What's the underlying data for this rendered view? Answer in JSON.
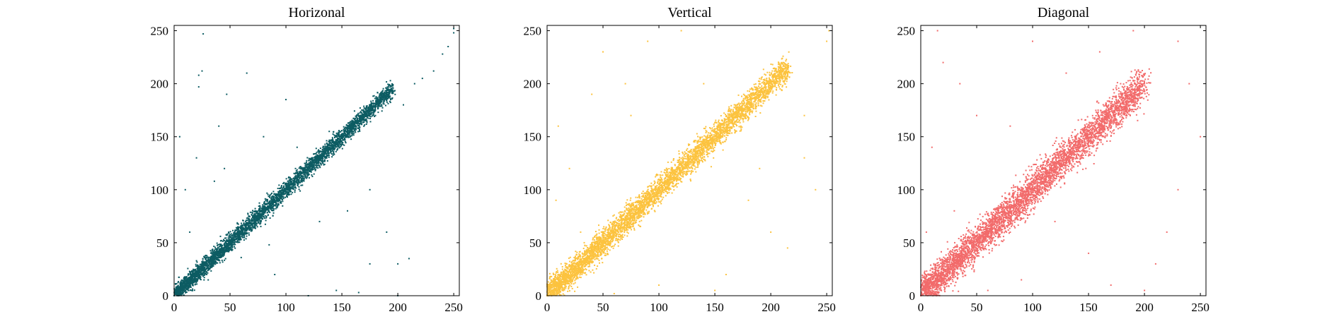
{
  "chart_data": [
    {
      "type": "scatter",
      "title": "Horizonal",
      "color": "#0d5c63",
      "xlim": [
        0,
        255
      ],
      "ylim": [
        0,
        255
      ],
      "xticks": [
        0,
        50,
        100,
        150,
        200,
        250
      ],
      "yticks": [
        0,
        50,
        100,
        150,
        200,
        250
      ],
      "grid": false,
      "trend": {
        "x_start": 0,
        "x_end": 195,
        "slope": 1.0,
        "spread": 4,
        "n_points": 4200
      },
      "sample_points": [
        [
          0,
          0
        ],
        [
          3,
          2
        ],
        [
          5,
          4
        ],
        [
          8,
          6
        ],
        [
          10,
          9
        ],
        [
          12,
          14
        ],
        [
          15,
          13
        ],
        [
          20,
          18
        ],
        [
          25,
          24
        ],
        [
          30,
          29
        ],
        [
          40,
          41
        ],
        [
          50,
          50
        ],
        [
          60,
          59
        ],
        [
          70,
          71
        ],
        [
          80,
          80
        ],
        [
          90,
          88
        ],
        [
          100,
          101
        ],
        [
          110,
          109
        ],
        [
          120,
          121
        ],
        [
          130,
          129
        ],
        [
          140,
          142
        ],
        [
          150,
          149
        ],
        [
          160,
          161
        ],
        [
          170,
          168
        ],
        [
          180,
          181
        ],
        [
          190,
          190
        ],
        [
          195,
          196
        ],
        [
          25,
          212
        ],
        [
          22,
          208
        ],
        [
          22,
          197
        ],
        [
          26,
          247
        ],
        [
          47,
          190
        ],
        [
          65,
          210
        ],
        [
          20,
          130
        ],
        [
          40,
          160
        ],
        [
          36,
          108
        ],
        [
          10,
          100
        ],
        [
          14,
          60
        ],
        [
          60,
          36
        ],
        [
          90,
          20
        ],
        [
          120,
          0
        ],
        [
          145,
          5
        ],
        [
          165,
          3
        ],
        [
          200,
          0
        ],
        [
          175,
          30
        ],
        [
          180,
          170
        ],
        [
          205,
          180
        ],
        [
          215,
          200
        ],
        [
          222,
          205
        ],
        [
          232,
          212
        ],
        [
          240,
          228
        ],
        [
          245,
          235
        ],
        [
          250,
          248
        ],
        [
          250,
          252
        ],
        [
          45,
          120
        ],
        [
          80,
          150
        ],
        [
          110,
          140
        ],
        [
          130,
          70
        ],
        [
          155,
          80
        ],
        [
          175,
          100
        ],
        [
          200,
          30
        ],
        [
          210,
          35
        ],
        [
          190,
          60
        ],
        [
          100,
          185
        ],
        [
          85,
          48
        ],
        [
          5,
          150
        ]
      ]
    },
    {
      "type": "scatter",
      "title": "Vertical",
      "color": "#fcc33f",
      "xlim": [
        0,
        255
      ],
      "ylim": [
        0,
        255
      ],
      "xticks": [
        0,
        50,
        100,
        150,
        200,
        250
      ],
      "yticks": [
        0,
        50,
        100,
        150,
        200,
        250
      ],
      "grid": false,
      "trend": {
        "x_start": 0,
        "x_end": 215,
        "slope": 1.0,
        "spread": 6,
        "n_points": 4800
      },
      "sample_points": [
        [
          0,
          0
        ],
        [
          2,
          3
        ],
        [
          5,
          4
        ],
        [
          8,
          9
        ],
        [
          12,
          10
        ],
        [
          18,
          20
        ],
        [
          25,
          24
        ],
        [
          35,
          36
        ],
        [
          45,
          44
        ],
        [
          55,
          56
        ],
        [
          65,
          64
        ],
        [
          75,
          77
        ],
        [
          85,
          84
        ],
        [
          95,
          96
        ],
        [
          105,
          104
        ],
        [
          115,
          117
        ],
        [
          125,
          124
        ],
        [
          135,
          137
        ],
        [
          145,
          144
        ],
        [
          155,
          157
        ],
        [
          165,
          163
        ],
        [
          175,
          177
        ],
        [
          185,
          183
        ],
        [
          195,
          196
        ],
        [
          205,
          204
        ],
        [
          215,
          214
        ],
        [
          75,
          170
        ],
        [
          70,
          200
        ],
        [
          10,
          160
        ],
        [
          20,
          120
        ],
        [
          40,
          190
        ],
        [
          50,
          230
        ],
        [
          90,
          240
        ],
        [
          120,
          250
        ],
        [
          140,
          200
        ],
        [
          180,
          90
        ],
        [
          190,
          120
        ],
        [
          200,
          60
        ],
        [
          230,
          130
        ],
        [
          240,
          100
        ],
        [
          250,
          240
        ],
        [
          252,
          250
        ],
        [
          230,
          170
        ],
        [
          215,
          45
        ],
        [
          160,
          20
        ],
        [
          150,
          5
        ],
        [
          100,
          10
        ],
        [
          60,
          2
        ],
        [
          30,
          60
        ],
        [
          8,
          90
        ]
      ]
    },
    {
      "type": "scatter",
      "title": "Diagonal",
      "color": "#f26b6b",
      "xlim": [
        0,
        255
      ],
      "ylim": [
        0,
        255
      ],
      "xticks": [
        0,
        50,
        100,
        150,
        200,
        250
      ],
      "yticks": [
        0,
        50,
        100,
        150,
        200,
        250
      ],
      "grid": false,
      "trend": {
        "x_start": 0,
        "x_end": 200,
        "slope": 1.0,
        "spread": 8,
        "n_points": 4800
      },
      "sample_points": [
        [
          0,
          0
        ],
        [
          3,
          5
        ],
        [
          6,
          3
        ],
        [
          10,
          12
        ],
        [
          15,
          14
        ],
        [
          20,
          22
        ],
        [
          30,
          29
        ],
        [
          40,
          42
        ],
        [
          50,
          49
        ],
        [
          60,
          61
        ],
        [
          70,
          68
        ],
        [
          80,
          82
        ],
        [
          90,
          89
        ],
        [
          100,
          101
        ],
        [
          110,
          108
        ],
        [
          120,
          122
        ],
        [
          130,
          129
        ],
        [
          140,
          142
        ],
        [
          150,
          148
        ],
        [
          160,
          162
        ],
        [
          170,
          169
        ],
        [
          180,
          182
        ],
        [
          190,
          188
        ],
        [
          200,
          200
        ],
        [
          20,
          220
        ],
        [
          15,
          250
        ],
        [
          35,
          200
        ],
        [
          50,
          170
        ],
        [
          80,
          160
        ],
        [
          100,
          240
        ],
        [
          130,
          210
        ],
        [
          160,
          230
        ],
        [
          190,
          250
        ],
        [
          230,
          240
        ],
        [
          240,
          200
        ],
        [
          250,
          150
        ],
        [
          230,
          100
        ],
        [
          220,
          60
        ],
        [
          210,
          30
        ],
        [
          200,
          5
        ],
        [
          170,
          10
        ],
        [
          150,
          40
        ],
        [
          120,
          70
        ],
        [
          90,
          15
        ],
        [
          60,
          5
        ],
        [
          30,
          80
        ],
        [
          10,
          140
        ],
        [
          5,
          60
        ]
      ]
    }
  ]
}
